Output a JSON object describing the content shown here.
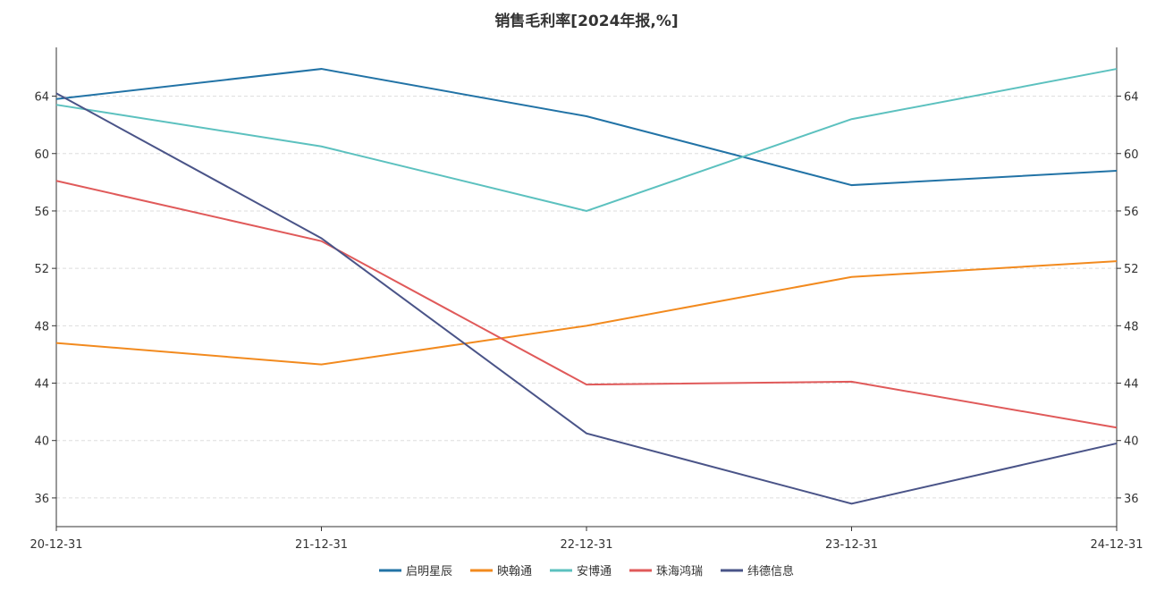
{
  "chart_data": {
    "type": "line",
    "title": "销售毛利率[2024年报,%]",
    "xlabel": "",
    "ylabel": "",
    "categories": [
      "20-12-31",
      "21-12-31",
      "22-12-31",
      "23-12-31",
      "24-12-31"
    ],
    "ylim": [
      34,
      67.4
    ],
    "yticks": [
      36,
      40,
      44,
      48,
      52,
      56,
      60,
      64
    ],
    "grid": true,
    "legend_position": "bottom-center",
    "series": [
      {
        "name": "启明星辰",
        "color": "#2273a6",
        "values": [
          63.8,
          65.9,
          62.6,
          57.8,
          58.8
        ]
      },
      {
        "name": "映翰通",
        "color": "#f28a1e",
        "values": [
          46.8,
          45.3,
          48.0,
          51.4,
          52.5
        ]
      },
      {
        "name": "安博通",
        "color": "#5cc1bf",
        "values": [
          63.4,
          60.5,
          56.0,
          62.4,
          65.9
        ]
      },
      {
        "name": "珠海鸿瑞",
        "color": "#e05a5a",
        "values": [
          58.1,
          53.9,
          43.9,
          44.1,
          40.9
        ]
      },
      {
        "name": "纬德信息",
        "color": "#4a5488",
        "values": [
          64.2,
          54.1,
          40.5,
          35.6,
          39.8
        ]
      }
    ]
  }
}
